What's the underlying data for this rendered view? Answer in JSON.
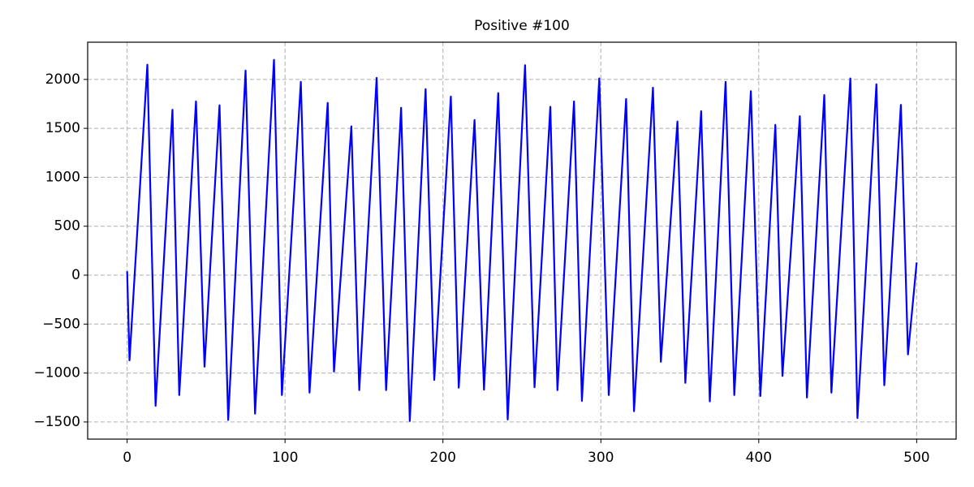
{
  "chart_data": {
    "type": "line",
    "title": "Positive #100",
    "color": "#0000ff",
    "grid": true,
    "x": [
      0,
      1.5,
      12.8,
      18,
      28.7,
      33,
      43.6,
      49,
      58.5,
      64,
      75,
      81,
      93,
      98,
      110,
      115.5,
      127,
      131,
      142,
      147,
      158,
      164,
      173.5,
      179,
      189,
      194.5,
      205,
      210,
      220,
      226,
      235,
      241,
      252,
      258,
      268,
      272.5,
      283,
      288,
      299,
      305,
      316,
      321,
      333,
      338,
      348.5,
      353.5,
      363.5,
      369,
      379,
      384.5,
      395,
      401,
      410.5,
      415,
      426,
      430.5,
      441.5,
      446,
      458,
      462.5,
      474.5,
      479.5,
      490,
      494.5,
      500
    ],
    "values": [
      40,
      -870,
      2150,
      -1335,
      1690,
      -1225,
      1775,
      -935,
      1735,
      -1480,
      2090,
      -1415,
      2200,
      -1225,
      1975,
      -1200,
      1760,
      -985,
      1520,
      -1175,
      2015,
      -1175,
      1710,
      -1490,
      1900,
      -1070,
      1825,
      -1150,
      1585,
      -1170,
      1860,
      -1475,
      2145,
      -1145,
      1720,
      -1175,
      1775,
      -1285,
      2010,
      -1225,
      1800,
      -1390,
      1915,
      -885,
      1570,
      -1100,
      1675,
      -1290,
      1975,
      -1225,
      1880,
      -1235,
      1535,
      -1030,
      1625,
      -1250,
      1840,
      -1200,
      2010,
      -1460,
      1950,
      -1125,
      1740,
      -810,
      130
    ],
    "xlim": [
      -25,
      525
    ],
    "ylim": [
      -1675,
      2380
    ],
    "xticks": [
      0,
      100,
      200,
      300,
      400,
      500
    ],
    "yticks": [
      {
        "value": -1500,
        "label": "−1500"
      },
      {
        "value": -1000,
        "label": "−1000"
      },
      {
        "value": -500,
        "label": "−500"
      },
      0,
      500,
      1000,
      1500,
      2000
    ]
  }
}
